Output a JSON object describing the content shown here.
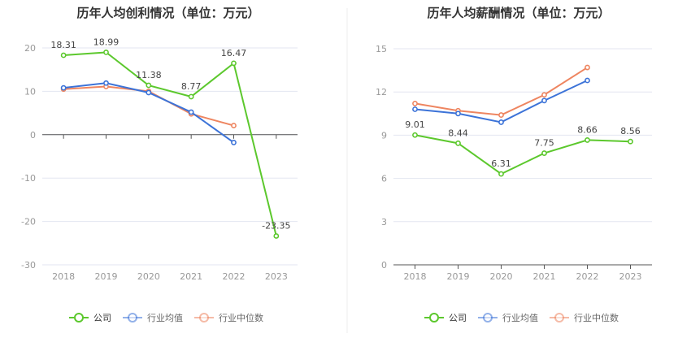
{
  "colors": {
    "company": "#5cc82d",
    "industry_avg": "#3c73d8",
    "industry_median": "#ee8560",
    "grid": "#e3e6f0",
    "axis": "#555555",
    "divider": "#eeeeee"
  },
  "legend": {
    "company": "公司",
    "industry_avg": "行业均值",
    "industry_median": "行业中位数"
  },
  "chart_data": [
    {
      "type": "line",
      "title": "历年人均创利情况（单位：万元）",
      "categories": [
        "2018",
        "2019",
        "2020",
        "2021",
        "2022",
        "2023"
      ],
      "ylim": [
        -30,
        20
      ],
      "yticks": [
        20,
        10,
        0,
        -10,
        -20,
        -30
      ],
      "grid": true,
      "legend_position": "bottom",
      "series": [
        {
          "name": "公司",
          "key": "company",
          "values": [
            18.31,
            18.99,
            11.38,
            8.77,
            16.47,
            -23.35
          ],
          "labels": [
            "18.31",
            "18.99",
            "11.38",
            "8.77",
            "16.47",
            "-23.35"
          ]
        },
        {
          "name": "行业均值",
          "key": "industry_avg",
          "values": [
            10.8,
            11.9,
            9.7,
            5.2,
            -1.8,
            null
          ]
        },
        {
          "name": "行业中位数",
          "key": "industry_median",
          "values": [
            10.5,
            11.1,
            10.0,
            4.8,
            2.1,
            null
          ]
        }
      ]
    },
    {
      "type": "line",
      "title": "历年人均薪酬情况（单位：万元）",
      "categories": [
        "2018",
        "2019",
        "2020",
        "2021",
        "2022",
        "2023"
      ],
      "ylim": [
        0,
        15
      ],
      "yticks": [
        15,
        12,
        9,
        6,
        3,
        0
      ],
      "grid": true,
      "legend_position": "bottom",
      "series": [
        {
          "name": "公司",
          "key": "company",
          "values": [
            9.01,
            8.44,
            6.31,
            7.75,
            8.66,
            8.56
          ],
          "labels": [
            "9.01",
            "8.44",
            "6.31",
            "7.75",
            "8.66",
            "8.56"
          ]
        },
        {
          "name": "行业均值",
          "key": "industry_avg",
          "values": [
            10.8,
            10.5,
            9.9,
            11.4,
            12.8,
            null
          ]
        },
        {
          "name": "行业中位数",
          "key": "industry_median",
          "values": [
            11.2,
            10.7,
            10.4,
            11.8,
            13.7,
            null
          ]
        }
      ]
    }
  ]
}
